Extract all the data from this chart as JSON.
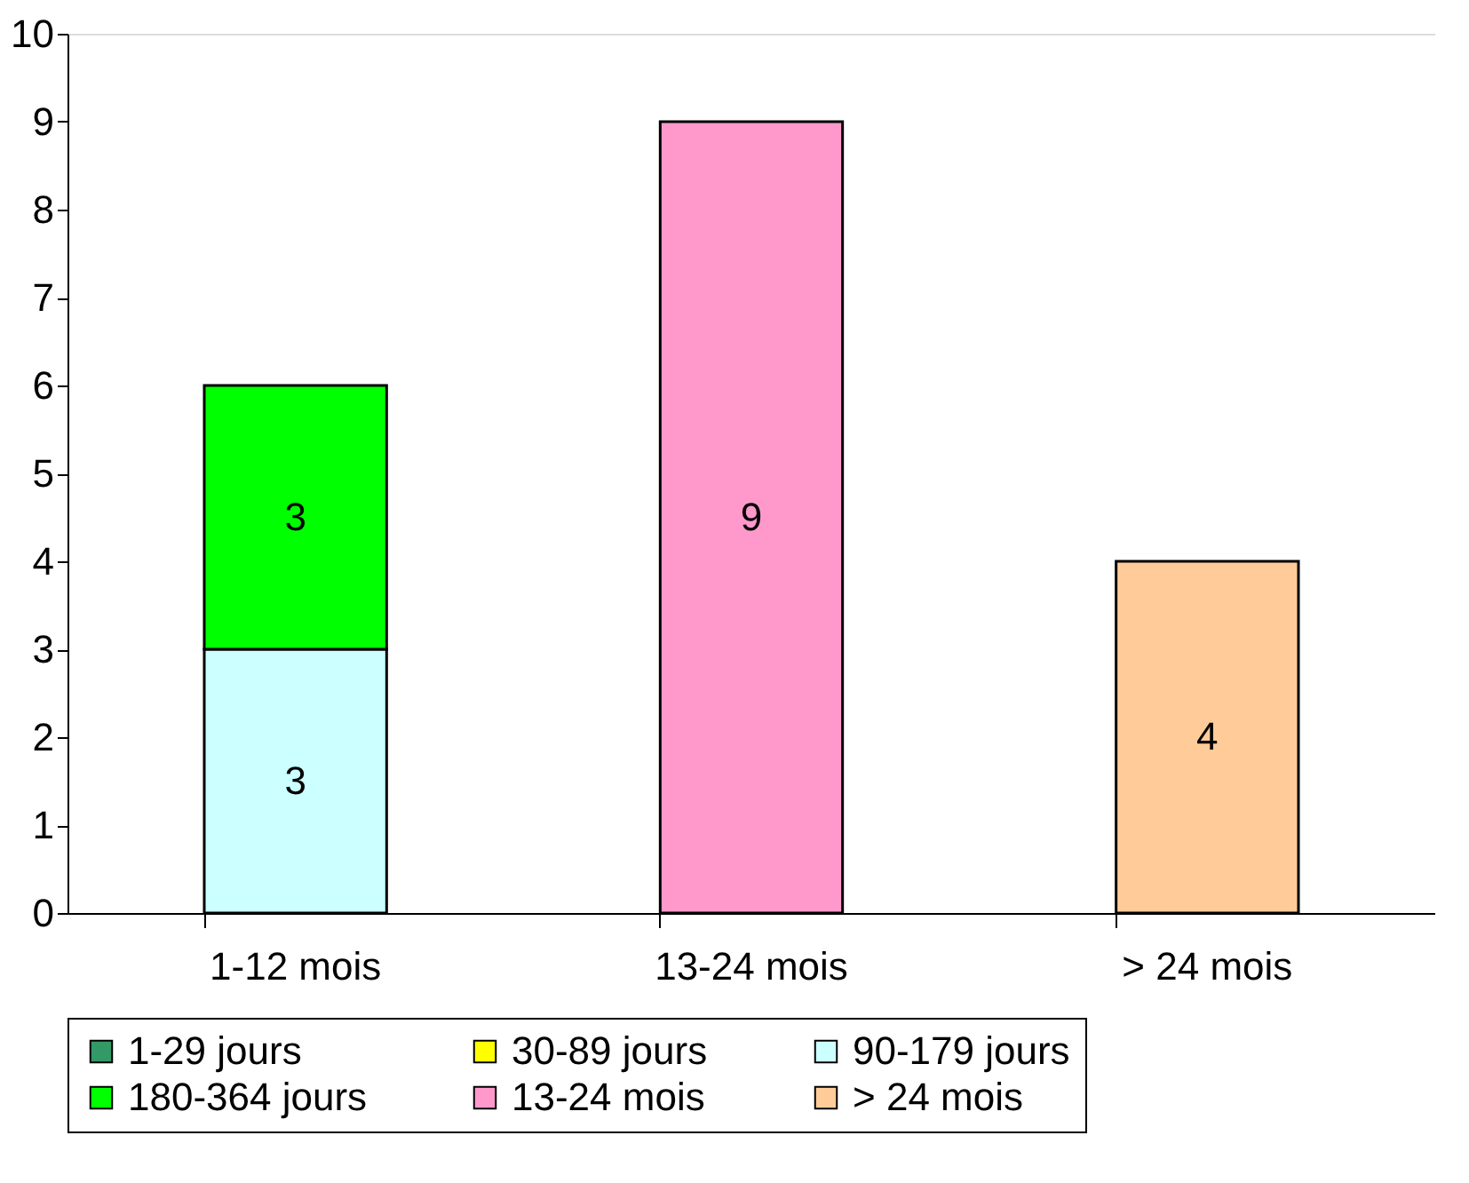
{
  "chart_data": {
    "type": "bar",
    "stacked": true,
    "data_labels": true,
    "categories": [
      "1-12 mois",
      "13-24 mois",
      "> 24 mois"
    ],
    "series": [
      {
        "name": "1-29 jours",
        "color": "#339966",
        "values": [
          null,
          null,
          null
        ]
      },
      {
        "name": "30-89 jours",
        "color": "#ffff00",
        "values": [
          null,
          null,
          null
        ]
      },
      {
        "name": "90-179 jours",
        "color": "#ccffff",
        "values": [
          3,
          null,
          null
        ]
      },
      {
        "name": "180-364 jours",
        "color": "#00ff00",
        "values": [
          3,
          null,
          null
        ]
      },
      {
        "name": "13-24 mois",
        "color": "#ff99cc",
        "values": [
          null,
          9,
          null
        ]
      },
      {
        "name": "> 24 mois",
        "color": "#ffcc99",
        "values": [
          null,
          null,
          4
        ]
      }
    ],
    "ylim": [
      0,
      10
    ],
    "yticks": [
      0,
      1,
      2,
      3,
      4,
      5,
      6,
      7,
      8,
      9,
      10
    ],
    "grid": false,
    "legend": "bottom"
  }
}
